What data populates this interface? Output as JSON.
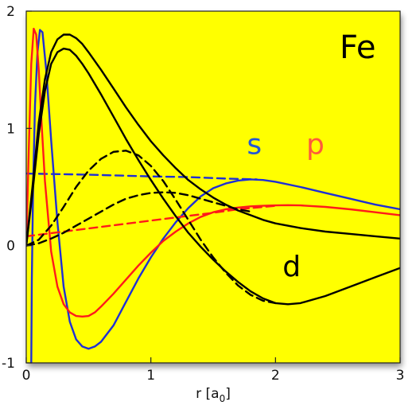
{
  "chart_data": {
    "type": "line",
    "title": "",
    "xlabel": "r [a0]",
    "xlabel_parts": {
      "main": "r [a",
      "sub": "0",
      "end": "]"
    },
    "ylabel": "",
    "xlim": [
      0,
      3
    ],
    "ylim": [
      -1,
      2
    ],
    "x_ticks": [
      {
        "value": 0,
        "label": "0"
      },
      {
        "value": 1,
        "label": "1"
      },
      {
        "value": 2,
        "label": "2"
      },
      {
        "value": 3,
        "label": "3"
      }
    ],
    "y_ticks": [
      {
        "value": -1,
        "label": "-1"
      },
      {
        "value": 0,
        "label": "0"
      },
      {
        "value": 1,
        "label": "1"
      },
      {
        "value": 2,
        "label": "2"
      }
    ],
    "background": "#ffff00",
    "grid": false,
    "annotations": [
      {
        "id": "element",
        "text": "Fe",
        "x": 2.66,
        "y": 1.6,
        "color": "#000000"
      },
      {
        "id": "s",
        "text": "s",
        "x": 1.83,
        "y": 0.78,
        "color": "#2257d6"
      },
      {
        "id": "p",
        "text": "p",
        "x": 2.32,
        "y": 0.78,
        "color": "#ff5a3c"
      },
      {
        "id": "d",
        "text": "d",
        "x": 2.13,
        "y": -0.26,
        "color": "#000000"
      }
    ],
    "series": [
      {
        "id": "s-solid",
        "color": "#1f2fd6",
        "dash": false,
        "x": [
          0.04,
          0.045,
          0.055,
          0.07,
          0.09,
          0.11,
          0.13,
          0.16,
          0.2,
          0.25,
          0.3,
          0.35,
          0.4,
          0.45,
          0.5,
          0.55,
          0.6,
          0.7,
          0.8,
          0.9,
          1.0,
          1.1,
          1.2,
          1.3,
          1.4,
          1.5,
          1.6,
          1.7,
          1.8,
          1.9,
          2.0,
          2.2,
          2.4,
          2.6,
          2.8,
          3.0
        ],
        "y": [
          -1.0,
          -0.3,
          0.5,
          1.2,
          1.65,
          1.84,
          1.82,
          1.5,
          0.9,
          0.2,
          -0.35,
          -0.65,
          -0.8,
          -0.86,
          -0.88,
          -0.86,
          -0.82,
          -0.68,
          -0.48,
          -0.28,
          -0.1,
          0.06,
          0.2,
          0.32,
          0.42,
          0.49,
          0.53,
          0.555,
          0.565,
          0.56,
          0.545,
          0.5,
          0.45,
          0.4,
          0.35,
          0.31
        ]
      },
      {
        "id": "s-dashed",
        "color": "#1f2fd6",
        "dash": true,
        "x": [
          0.0,
          0.5,
          1.0,
          1.3,
          1.6,
          1.85
        ],
        "y": [
          0.615,
          0.605,
          0.59,
          0.585,
          0.572,
          0.565
        ]
      },
      {
        "id": "p-solid",
        "color": "#ff1a1a",
        "dash": false,
        "x": [
          0.0,
          0.02,
          0.04,
          0.06,
          0.08,
          0.1,
          0.12,
          0.15,
          0.2,
          0.25,
          0.3,
          0.35,
          0.4,
          0.45,
          0.5,
          0.55,
          0.6,
          0.7,
          0.8,
          0.9,
          1.0,
          1.1,
          1.2,
          1.3,
          1.4,
          1.5,
          1.6,
          1.7,
          1.8,
          1.9,
          2.0,
          2.1,
          2.2,
          2.4,
          2.6,
          2.8,
          3.0
        ],
        "y": [
          0.0,
          0.8,
          1.55,
          1.85,
          1.8,
          1.5,
          1.1,
          0.55,
          -0.05,
          -0.35,
          -0.5,
          -0.57,
          -0.6,
          -0.605,
          -0.6,
          -0.57,
          -0.52,
          -0.41,
          -0.29,
          -0.17,
          -0.06,
          0.04,
          0.12,
          0.19,
          0.245,
          0.285,
          0.31,
          0.325,
          0.335,
          0.34,
          0.343,
          0.345,
          0.343,
          0.33,
          0.31,
          0.285,
          0.26
        ]
      },
      {
        "id": "p-dashed",
        "color": "#ff1a1a",
        "dash": true,
        "x": [
          0.0,
          0.3,
          0.6,
          0.9,
          1.2,
          1.5,
          1.7,
          2.0
        ],
        "y": [
          0.08,
          0.12,
          0.16,
          0.2,
          0.24,
          0.28,
          0.31,
          0.34
        ]
      },
      {
        "id": "d-solid-upper",
        "color": "#000000",
        "dash": false,
        "x": [
          0.0,
          0.05,
          0.1,
          0.15,
          0.2,
          0.25,
          0.3,
          0.35,
          0.4,
          0.45,
          0.5,
          0.6,
          0.7,
          0.8,
          0.9,
          1.0,
          1.1,
          1.2,
          1.3,
          1.4,
          1.5,
          1.6,
          1.7,
          1.8,
          1.9,
          2.0,
          2.2,
          2.4,
          2.6,
          2.8,
          3.0
        ],
        "y": [
          0.0,
          0.5,
          1.05,
          1.42,
          1.65,
          1.76,
          1.8,
          1.8,
          1.77,
          1.72,
          1.65,
          1.5,
          1.34,
          1.18,
          1.03,
          0.89,
          0.77,
          0.66,
          0.56,
          0.48,
          0.41,
          0.35,
          0.3,
          0.26,
          0.22,
          0.19,
          0.15,
          0.12,
          0.1,
          0.08,
          0.06
        ]
      },
      {
        "id": "d-solid-lower",
        "color": "#000000",
        "dash": false,
        "x": [
          0.0,
          0.05,
          0.1,
          0.15,
          0.2,
          0.25,
          0.3,
          0.35,
          0.4,
          0.45,
          0.5,
          0.6,
          0.7,
          0.8,
          0.9,
          1.0,
          1.1,
          1.2,
          1.3,
          1.4,
          1.5,
          1.6,
          1.7,
          1.8,
          1.9,
          2.0,
          2.1,
          2.2,
          2.4,
          2.6,
          2.8,
          3.0
        ],
        "y": [
          0.0,
          0.45,
          0.95,
          1.32,
          1.55,
          1.65,
          1.68,
          1.67,
          1.62,
          1.55,
          1.47,
          1.29,
          1.1,
          0.91,
          0.73,
          0.56,
          0.4,
          0.25,
          0.11,
          -0.01,
          -0.12,
          -0.22,
          -0.31,
          -0.39,
          -0.45,
          -0.49,
          -0.5,
          -0.49,
          -0.43,
          -0.35,
          -0.27,
          -0.19
        ]
      },
      {
        "id": "d-dashed-upper",
        "color": "#000000",
        "dash": true,
        "x": [
          0.0,
          0.1,
          0.2,
          0.3,
          0.4,
          0.5,
          0.6,
          0.7,
          0.8,
          0.9,
          1.0,
          1.1,
          1.2,
          1.3,
          1.4,
          1.5,
          1.6,
          1.7,
          1.8,
          1.9,
          2.0
        ],
        "y": [
          0.0,
          0.05,
          0.17,
          0.33,
          0.5,
          0.64,
          0.74,
          0.8,
          0.81,
          0.77,
          0.68,
          0.55,
          0.39,
          0.22,
          0.05,
          -0.1,
          -0.23,
          -0.34,
          -0.42,
          -0.47,
          -0.49
        ]
      },
      {
        "id": "d-dashed-lower",
        "color": "#000000",
        "dash": true,
        "x": [
          0.0,
          0.1,
          0.2,
          0.3,
          0.4,
          0.5,
          0.6,
          0.7,
          0.8,
          0.9,
          1.0,
          1.1,
          1.2,
          1.3,
          1.4,
          1.5,
          1.6,
          1.7,
          1.8
        ],
        "y": [
          0.0,
          0.02,
          0.06,
          0.11,
          0.17,
          0.23,
          0.29,
          0.35,
          0.4,
          0.43,
          0.45,
          0.455,
          0.45,
          0.43,
          0.4,
          0.37,
          0.34,
          0.31,
          0.29
        ]
      }
    ]
  }
}
